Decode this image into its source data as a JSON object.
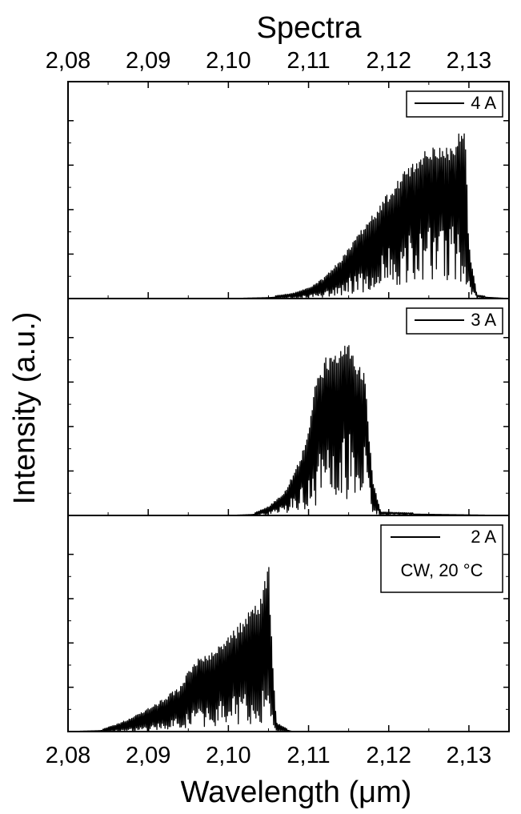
{
  "chart_data": {
    "type": "line",
    "title": "Spectra",
    "xlabel": "Wavelength (μm)",
    "ylabel": "Intensity (a.u.)",
    "xlim": [
      2.08,
      2.135
    ],
    "xticks": [
      2.08,
      2.09,
      2.1,
      2.11,
      2.12,
      2.13
    ],
    "xtick_labels": [
      "2,08",
      "2,09",
      "2,10",
      "2,11",
      "2,12",
      "2,13"
    ],
    "top_axis_ticks_shown": true,
    "grid": false,
    "panels": [
      {
        "legend": [
          "4 A"
        ],
        "legend_position": "top-right",
        "series": [
          {
            "name": "4 A",
            "envelope": {
              "x": [
                2.08,
                2.1,
                2.105,
                2.108,
                2.11,
                2.112,
                2.114,
                2.116,
                2.118,
                2.12,
                2.122,
                2.124,
                2.126,
                2.128,
                2.1295,
                2.13,
                2.131,
                2.135
              ],
              "peak": [
                0.0,
                0.0,
                0.01,
                0.03,
                0.06,
                0.12,
                0.22,
                0.35,
                0.47,
                0.6,
                0.72,
                0.82,
                0.86,
                0.86,
                1.0,
                0.3,
                0.02,
                0.0
              ],
              "valley": [
                0.0,
                0.0,
                0.0,
                0.01,
                0.02,
                0.04,
                0.08,
                0.14,
                0.2,
                0.26,
                0.32,
                0.36,
                0.38,
                0.38,
                0.4,
                0.1,
                0.01,
                0.0
              ]
            }
          }
        ]
      },
      {
        "legend": [
          "3 A"
        ],
        "legend_position": "top-right",
        "series": [
          {
            "name": "3 A",
            "envelope": {
              "x": [
                2.08,
                2.1,
                2.103,
                2.105,
                2.107,
                2.109,
                2.11,
                2.111,
                2.112,
                2.113,
                2.114,
                2.115,
                2.116,
                2.117,
                2.118,
                2.119,
                2.135
              ],
              "peak": [
                0.0,
                0.0,
                0.01,
                0.05,
                0.13,
                0.32,
                0.5,
                0.78,
                0.88,
                0.92,
                0.95,
                1.0,
                0.88,
                0.8,
                0.2,
                0.02,
                0.0
              ],
              "valley": [
                0.0,
                0.0,
                0.0,
                0.02,
                0.06,
                0.14,
                0.22,
                0.3,
                0.36,
                0.4,
                0.42,
                0.44,
                0.4,
                0.36,
                0.06,
                0.01,
                0.0
              ]
            }
          }
        ]
      },
      {
        "legend": [
          "2 A",
          "CW, 20 °C"
        ],
        "legend_position": "top-right",
        "series": [
          {
            "name": "2 A",
            "envelope": {
              "x": [
                2.08,
                2.084,
                2.086,
                2.088,
                2.09,
                2.092,
                2.094,
                2.096,
                2.098,
                2.1,
                2.102,
                2.104,
                2.105,
                2.1055,
                2.106,
                2.108,
                2.135
              ],
              "peak": [
                0.0,
                0.01,
                0.04,
                0.08,
                0.13,
                0.19,
                0.26,
                0.42,
                0.45,
                0.53,
                0.65,
                0.75,
                1.0,
                0.4,
                0.05,
                0.0,
                0.0
              ],
              "valley": [
                0.0,
                0.0,
                0.01,
                0.02,
                0.03,
                0.05,
                0.08,
                0.12,
                0.14,
                0.18,
                0.2,
                0.24,
                0.2,
                0.1,
                0.01,
                0.0,
                0.0
              ]
            }
          }
        ]
      }
    ]
  }
}
